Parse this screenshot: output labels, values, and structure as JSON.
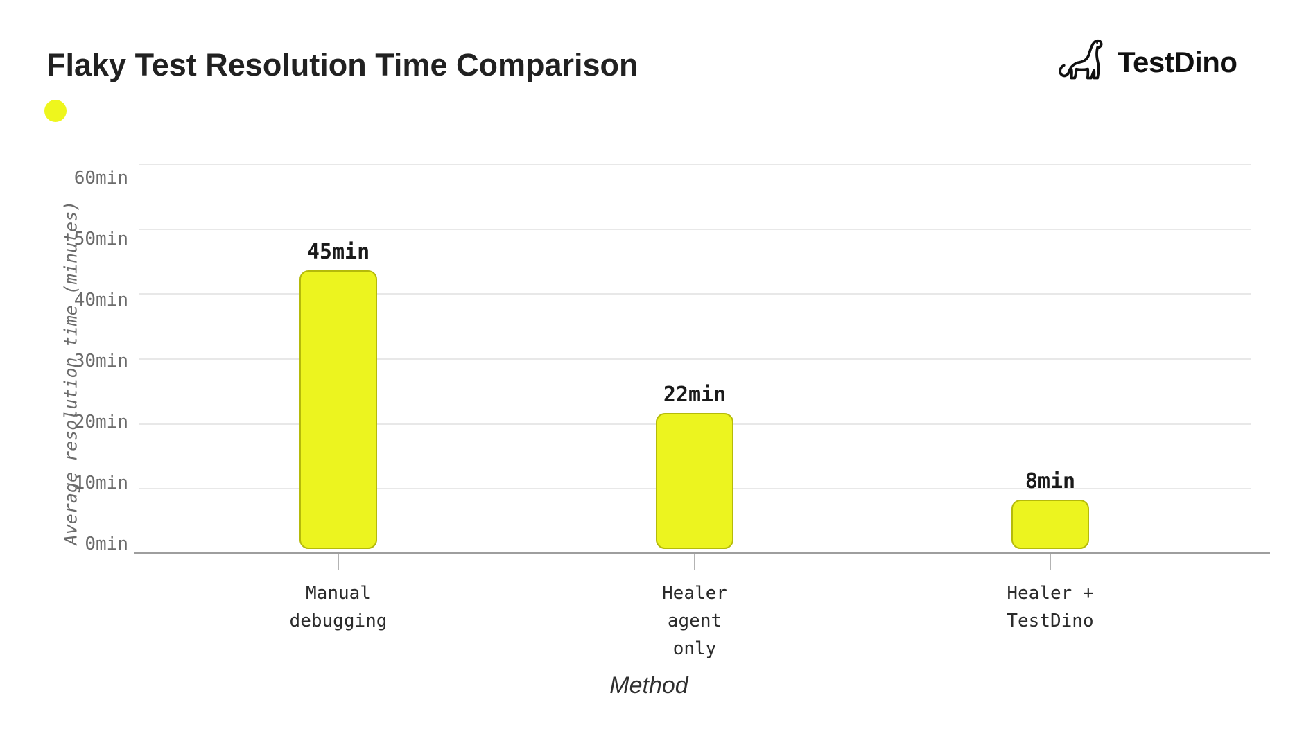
{
  "header": {
    "title": "Flaky Test Resolution Time Comparison",
    "logo_text": "TestDino"
  },
  "legend": {
    "marker_color": "#eef61d"
  },
  "chart_data": {
    "type": "bar",
    "title": "Flaky Test Resolution Time Comparison",
    "categories": [
      "Manual debugging",
      "Healer agent only",
      "Healer + TestDino"
    ],
    "category_lines": [
      [
        "Manual",
        "debugging"
      ],
      [
        "Healer",
        "agent",
        "only"
      ],
      [
        "Healer +",
        "TestDino"
      ]
    ],
    "values": [
      45,
      22,
      8
    ],
    "value_labels": [
      "45min",
      "22min",
      "8min"
    ],
    "xlabel": "Method",
    "ylabel": "Average resolution time (minutes)",
    "ylim": [
      0,
      60
    ],
    "ytick_step": 10,
    "ytick_labels": [
      "0min",
      "10min",
      "20min",
      "30min",
      "40min",
      "50min",
      "60min"
    ],
    "grid": true,
    "legend_position": "top-left",
    "bar_fill_color": "#ecf41f",
    "bar_border_color": "#b5ba0a",
    "gridline_color": "#e8e8e8",
    "axis_line_color": "#9e9e9e"
  }
}
